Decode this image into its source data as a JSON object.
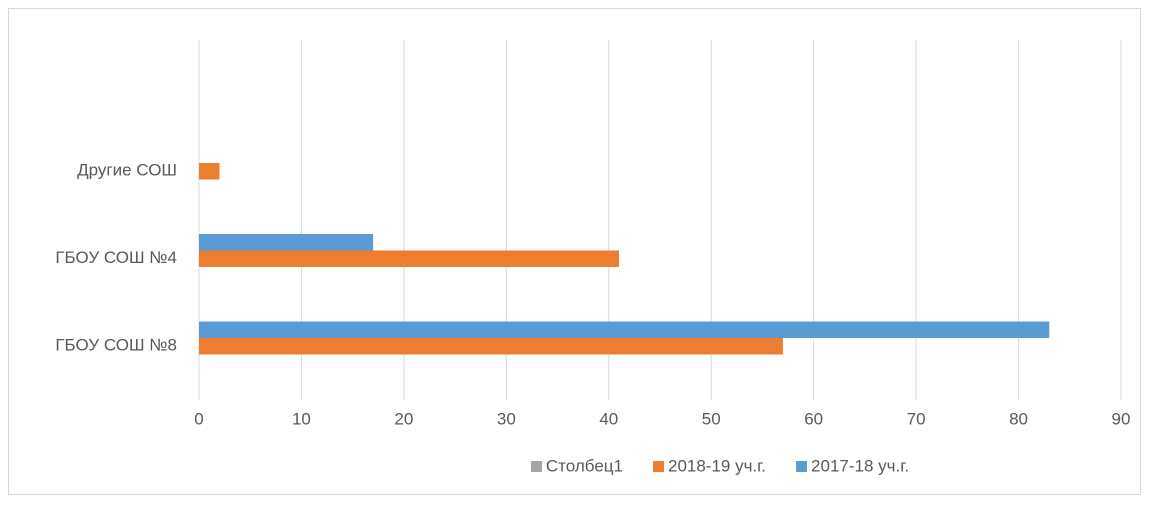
{
  "chart_data": {
    "type": "bar",
    "orientation": "horizontal",
    "categories": [
      "ГБОУ СОШ №8",
      "ГБОУ СОШ №4",
      "Другие СОШ",
      null
    ],
    "series": [
      {
        "name": "Столбец1",
        "color": "#a5a5a5",
        "values": [
          null,
          null,
          null,
          null
        ]
      },
      {
        "name": "2018-19 уч.г.",
        "color": "#ed7d31",
        "values": [
          57,
          41,
          2,
          null
        ]
      },
      {
        "name": "2017-18 уч.г.",
        "color": "#5b9bd5",
        "values": [
          83,
          17,
          null,
          null
        ]
      }
    ],
    "xlim": [
      0,
      90
    ],
    "xticks": [
      0,
      10,
      20,
      30,
      40,
      50,
      60,
      70,
      80,
      90
    ],
    "grid": true,
    "legend": "bottom"
  }
}
